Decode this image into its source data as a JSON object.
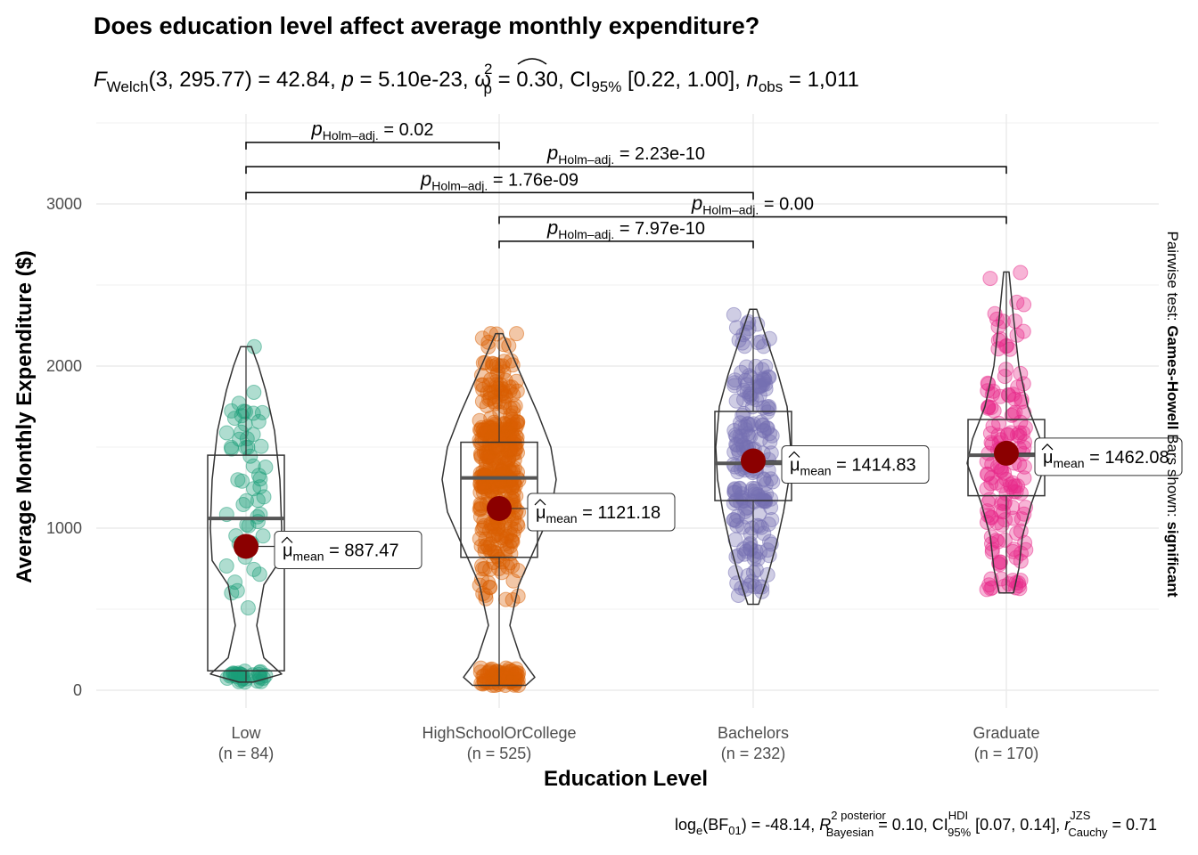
{
  "title": "Does education level affect average monthly expenditure?",
  "subtitle": {
    "f": "F",
    "welch": "Welch",
    "args": "(3, 295.77) = 42.84, ",
    "p": "p",
    "p_val": " = 5.10e-23, ",
    "omega": "ω",
    "omega_sup": "2",
    "omega_sub": "p",
    "omega_val": " = 0.30, CI",
    "ci_sub": "95%",
    "ci_val": " [0.22, 1.00], ",
    "n": "n",
    "n_sub": "obs",
    "n_val": " = 1,011"
  },
  "caption": {
    "log": "log",
    "log_sub": "e",
    "bf": "(BF",
    "bf_sub": "01",
    "bf_val": ") = -48.14, ",
    "r": "R",
    "r_sup": "2 posterior",
    "r_sub": "Bayesian",
    "r_val": " = 0.10, CI",
    "ci_sup": "HDI",
    "ci_sub": "95%",
    "ci_val": " [0.07, 0.14], ",
    "rc": "r",
    "rc_sup": "JZS",
    "rc_sub": "Cauchy",
    "rc_val": " = 0.71"
  },
  "side_label": {
    "prefix": "Pairwise test: ",
    "test": "Games-Howell",
    "middle": " Bars shown: ",
    "shown": "significant"
  },
  "chart_data": {
    "type": "violin-box-scatter",
    "title": "Does education level affect average monthly expenditure?",
    "xlabel": "Education Level",
    "ylabel": "Average Monthly Expenditure ($)",
    "ylim": [
      -100,
      3500
    ],
    "yticks": [
      0,
      1000,
      2000,
      3000
    ],
    "grid": true,
    "groups": [
      {
        "name": "Low",
        "n_label": "(n = 84)",
        "color": "#1b9e77",
        "mean": 887.47,
        "mean_label": "887.47",
        "min": 50,
        "q1": 120,
        "median": 1060,
        "q3": 1450,
        "max": 2120
      },
      {
        "name": "HighSchoolOrCollege",
        "n_label": "(n = 525)",
        "color": "#d95f02",
        "mean": 1121.18,
        "mean_label": "1121.18",
        "min": 30,
        "q1": 820,
        "median": 1310,
        "q3": 1530,
        "max": 2200
      },
      {
        "name": "Bachelors",
        "n_label": "(n = 232)",
        "color": "#7570b3",
        "mean": 1414.83,
        "mean_label": "1414.83",
        "min": 530,
        "q1": 1170,
        "median": 1400,
        "q3": 1720,
        "max": 2350
      },
      {
        "name": "Graduate",
        "n_label": "(n = 170)",
        "color": "#e7298a",
        "mean": 1462.08,
        "mean_label": "1462.08",
        "min": 600,
        "q1": 1200,
        "median": 1450,
        "q3": 1670,
        "max": 2580
      }
    ],
    "mean_symbol": "μ",
    "mean_sub": "mean",
    "p_symbol": "p",
    "p_sub": "Holm–adj.",
    "comparisons": [
      {
        "from": 0,
        "to": 1,
        "y": 3380,
        "p": "0.02"
      },
      {
        "from": 0,
        "to": 3,
        "y": 3230,
        "p": "2.23e-10"
      },
      {
        "from": 0,
        "to": 2,
        "y": 3070,
        "p": "1.76e-09"
      },
      {
        "from": 1,
        "to": 3,
        "y": 2920,
        "p": "0.00"
      },
      {
        "from": 1,
        "to": 2,
        "y": 2770,
        "p": "7.97e-10"
      }
    ]
  }
}
